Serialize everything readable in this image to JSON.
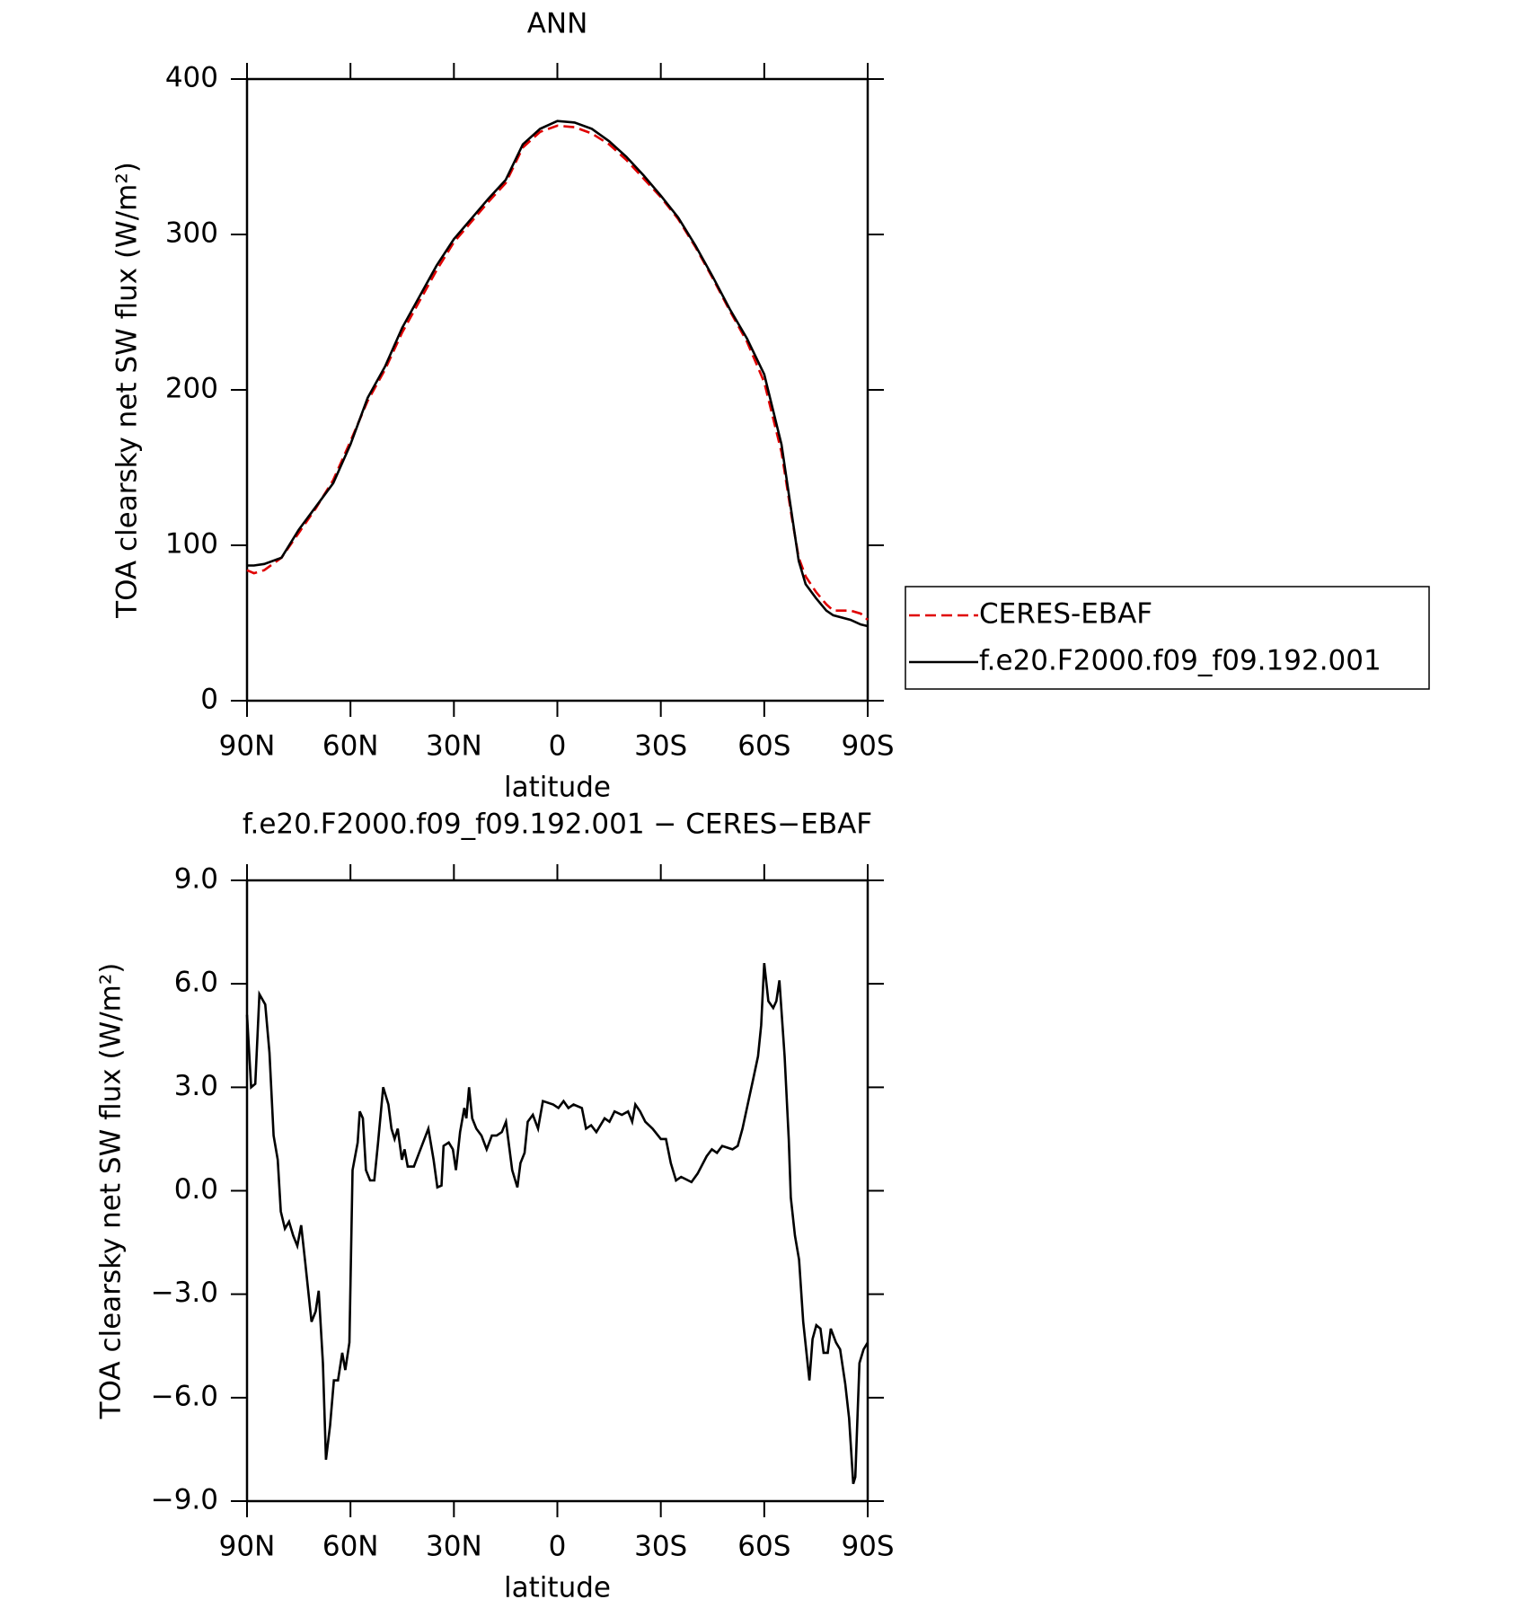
{
  "chart_data": [
    {
      "type": "line",
      "title": "ANN",
      "xlabel": "latitude",
      "ylabel": "TOA clearsky net SW flux (W/m²)",
      "x": [
        90,
        88,
        85,
        80,
        75,
        70,
        65,
        60,
        55,
        50,
        45,
        40,
        35,
        30,
        25,
        20,
        15,
        10,
        5,
        0,
        -5,
        -10,
        -15,
        -20,
        -25,
        -30,
        -35,
        -40,
        -45,
        -50,
        -55,
        -60,
        -65,
        -68,
        -70,
        -72,
        -75,
        -78,
        -80,
        -85,
        -88,
        -90
      ],
      "series": [
        {
          "name": "CERES-EBAF",
          "color": "#e00000",
          "line_style": "dashed",
          "values": [
            84,
            82,
            84,
            92,
            108,
            124,
            142,
            167,
            193,
            213,
            237,
            257,
            277,
            295,
            308,
            321,
            333,
            356,
            366,
            370,
            369,
            365,
            358,
            348,
            336,
            324,
            310,
            292,
            272,
            251,
            231,
            205,
            160,
            118,
            92,
            80,
            70,
            62,
            58,
            58,
            56,
            52
          ]
        },
        {
          "name": "f.e20.F2000.f09_f09.192.001",
          "color": "#000000",
          "line_style": "solid",
          "values": [
            87,
            87,
            88,
            92,
            110,
            125,
            140,
            165,
            195,
            215,
            240,
            260,
            280,
            297,
            310,
            323,
            335,
            358,
            368,
            373,
            372,
            368,
            360,
            350,
            338,
            325,
            311,
            293,
            273,
            252,
            233,
            210,
            165,
            120,
            90,
            75,
            66,
            58,
            55,
            52,
            49,
            48
          ]
        }
      ],
      "xlim": [
        90,
        -90
      ],
      "xticks": [
        {
          "value": 90,
          "label": "90N"
        },
        {
          "value": 60,
          "label": "60N"
        },
        {
          "value": 30,
          "label": "30N"
        },
        0,
        {
          "value": -30,
          "label": "30S"
        },
        {
          "value": -60,
          "label": "60S"
        },
        {
          "value": -90,
          "label": "90S"
        }
      ],
      "ylim": [
        0,
        400
      ],
      "yticks": [
        0,
        100,
        200,
        300,
        400
      ],
      "legend": "right"
    },
    {
      "type": "line",
      "title": "f.e20.F2000.f09_f09.192.001 − CERES−EBAF",
      "xlabel": "latitude",
      "ylabel": "TOA clearsky net SW flux (W/m²)",
      "x": [
        90.0,
        88.8,
        87.6,
        86.4,
        84.7,
        83.5,
        82.3,
        81.1,
        80.2,
        79.0,
        77.8,
        76.6,
        75.4,
        74.3,
        73.1,
        71.3,
        70.1,
        69.2,
        68.0,
        67.1,
        65.9,
        64.8,
        63.6,
        62.4,
        61.5,
        60.3,
        59.4,
        57.9,
        57.3,
        56.4,
        55.5,
        54.3,
        53.1,
        52.0,
        50.5,
        49.0,
        48.1,
        47.2,
        46.3,
        45.1,
        44.3,
        43.4,
        41.6,
        40.1,
        37.4,
        35.9,
        34.8,
        33.6,
        33.0,
        31.5,
        30.3,
        29.4,
        28.2,
        27.0,
        26.4,
        25.6,
        24.7,
        23.5,
        22.0,
        20.5,
        19.0,
        17.6,
        16.1,
        14.9,
        13.1,
        11.6,
        10.7,
        9.5,
        8.6,
        7.1,
        5.6,
        4.2,
        1.2,
        -0.3,
        -1.8,
        -3.2,
        -4.7,
        -7.1,
        -8.3,
        -9.8,
        -11.3,
        -13.7,
        -15.1,
        -16.6,
        -18.7,
        -20.5,
        -21.7,
        -22.6,
        -24.0,
        -25.5,
        -27.6,
        -30.0,
        -31.5,
        -32.9,
        -34.4,
        -35.9,
        -38.9,
        -40.7,
        -43.3,
        -44.8,
        -46.3,
        -47.8,
        -50.8,
        -52.3,
        -53.7,
        -55.2,
        -56.7,
        -58.2,
        -59.1,
        -60.0,
        -61.2,
        -62.6,
        -63.5,
        -64.4,
        -65.9,
        -67.1,
        -67.7,
        -68.9,
        -70.1,
        -71.3,
        -73.1,
        -74.0,
        -75.1,
        -76.3,
        -77.2,
        -78.4,
        -79.3,
        -80.8,
        -82.0,
        -83.5,
        -84.6,
        -85.8,
        -86.4,
        -87.6,
        -88.8,
        -90.0
      ],
      "values": [
        5.1,
        3.0,
        3.1,
        5.7,
        5.4,
        4.0,
        1.6,
        0.9,
        -0.6,
        -1.1,
        -0.9,
        -1.3,
        -1.6,
        -1.0,
        -2.1,
        -3.8,
        -3.5,
        -2.9,
        -5.0,
        -7.8,
        -6.8,
        -5.5,
        -5.5,
        -4.7,
        -5.2,
        -4.4,
        0.6,
        1.4,
        2.3,
        2.1,
        0.6,
        0.3,
        0.3,
        1.4,
        3.0,
        2.5,
        1.8,
        1.5,
        1.8,
        0.9,
        1.2,
        0.7,
        0.7,
        1.1,
        1.8,
        0.9,
        0.1,
        0.15,
        1.3,
        1.4,
        1.2,
        0.6,
        1.7,
        2.4,
        2.1,
        3.0,
        2.1,
        1.8,
        1.6,
        1.2,
        1.6,
        1.6,
        1.7,
        2.0,
        0.6,
        0.1,
        0.8,
        1.1,
        2.0,
        2.2,
        1.8,
        2.6,
        2.5,
        2.4,
        2.6,
        2.4,
        2.5,
        2.4,
        1.8,
        1.9,
        1.7,
        2.1,
        2.0,
        2.3,
        2.2,
        2.3,
        2.0,
        2.5,
        2.3,
        2.0,
        1.8,
        1.5,
        1.5,
        0.8,
        0.3,
        0.4,
        0.25,
        0.5,
        1.0,
        1.2,
        1.1,
        1.3,
        1.2,
        1.3,
        1.8,
        2.5,
        3.2,
        3.9,
        4.8,
        6.6,
        5.5,
        5.3,
        5.5,
        6.1,
        3.9,
        1.5,
        -0.2,
        -1.3,
        -2.0,
        -3.8,
        -5.5,
        -4.3,
        -3.9,
        -4.0,
        -4.7,
        -4.7,
        -4.0,
        -4.4,
        -4.6,
        -5.6,
        -6.6,
        -8.5,
        -8.3,
        -5.0,
        -4.6,
        -4.4
      ],
      "color": "#000000",
      "xlim": [
        90,
        -90
      ],
      "xticks": [
        {
          "value": 90,
          "label": "90N"
        },
        {
          "value": 60,
          "label": "60N"
        },
        {
          "value": 30,
          "label": "30N"
        },
        0,
        {
          "value": -30,
          "label": "30S"
        },
        {
          "value": -60,
          "label": "60S"
        },
        {
          "value": -90,
          "label": "90S"
        }
      ],
      "ylim": [
        -9,
        9
      ],
      "yticks": [
        {
          "value": -9,
          "label": "−9.0"
        },
        {
          "value": -6,
          "label": "−6.0"
        },
        {
          "value": -3,
          "label": "−3.0"
        },
        {
          "value": 0,
          "label": "0.0"
        },
        {
          "value": 3,
          "label": "3.0"
        },
        {
          "value": 6,
          "label": "6.0"
        },
        {
          "value": 9,
          "label": "9.0"
        }
      ]
    }
  ]
}
